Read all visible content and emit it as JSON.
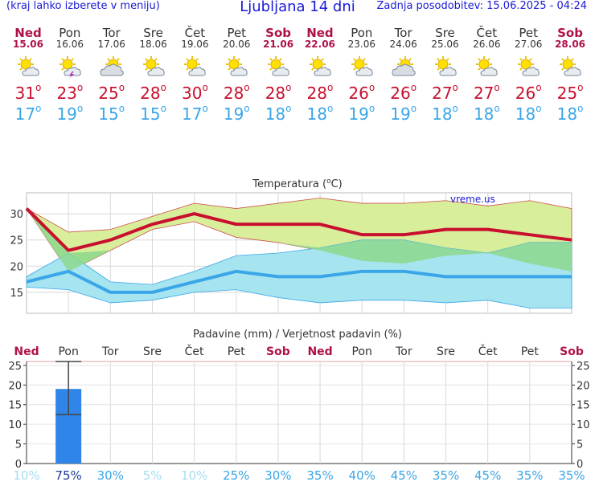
{
  "header": {
    "menu_hint": "(kraj lahko izberete v meniju)",
    "title": "Ljubljana 14 dni",
    "updated": "Zadnja posodobitev: 15.06.2025 - 04:24"
  },
  "days": [
    {
      "name": "Ned",
      "date": "15.06",
      "weekend": true,
      "icon": "partly-cloudy-sun-icon",
      "tmax": "31",
      "tmin": "17"
    },
    {
      "name": "Pon",
      "date": "16.06",
      "weekend": false,
      "icon": "thunderstorm-sun-icon",
      "tmax": "23",
      "tmin": "19"
    },
    {
      "name": "Tor",
      "date": "17.06",
      "weekend": false,
      "icon": "cloudy-sun-icon",
      "tmax": "25",
      "tmin": "15"
    },
    {
      "name": "Sre",
      "date": "18.06",
      "weekend": false,
      "icon": "partly-cloudy-sun-icon",
      "tmax": "28",
      "tmin": "15"
    },
    {
      "name": "Čet",
      "date": "19.06",
      "weekend": false,
      "icon": "partly-cloudy-sun-icon",
      "tmax": "30",
      "tmin": "17"
    },
    {
      "name": "Pet",
      "date": "20.06",
      "weekend": false,
      "icon": "partly-cloudy-sun-icon",
      "tmax": "28",
      "tmin": "19"
    },
    {
      "name": "Sob",
      "date": "21.06",
      "weekend": true,
      "icon": "partly-cloudy-sun-icon",
      "tmax": "28",
      "tmin": "18"
    },
    {
      "name": "Ned",
      "date": "22.06",
      "weekend": true,
      "icon": "partly-cloudy-sun-icon",
      "tmax": "28",
      "tmin": "18"
    },
    {
      "name": "Pon",
      "date": "23.06",
      "weekend": false,
      "icon": "partly-cloudy-sun-icon",
      "tmax": "26",
      "tmin": "19"
    },
    {
      "name": "Tor",
      "date": "24.06",
      "weekend": false,
      "icon": "cloudy-sun-icon",
      "tmax": "26",
      "tmin": "19"
    },
    {
      "name": "Sre",
      "date": "25.06",
      "weekend": false,
      "icon": "partly-cloudy-sun-icon",
      "tmax": "27",
      "tmin": "18"
    },
    {
      "name": "Čet",
      "date": "26.06",
      "weekend": false,
      "icon": "partly-cloudy-sun-icon",
      "tmax": "27",
      "tmin": "18"
    },
    {
      "name": "Pet",
      "date": "27.06",
      "weekend": false,
      "icon": "partly-cloudy-sun-icon",
      "tmax": "26",
      "tmin": "18"
    },
    {
      "name": "Sob",
      "date": "28.06",
      "weekend": true,
      "icon": "partly-cloudy-sun-icon",
      "tmax": "25",
      "tmin": "18"
    }
  ],
  "degree_symbol": "o",
  "colors": {
    "tmax": "#c8102e",
    "tmin": "#3aa6e8",
    "weekend": "#b0104a",
    "tmax_band": "#d8ee9a",
    "tmin_band": "#a6e4f0",
    "overlap": "#8cd88c",
    "precip_bar": "#2f86e8"
  },
  "chart_data": [
    {
      "type": "line",
      "title_prefix": "Temperatura (",
      "title_unit": "°C",
      "title_suffix": ")",
      "watermark": "vreme.us",
      "categories": [
        "Ned",
        "Pon",
        "Tor",
        "Sre",
        "Čet",
        "Pet",
        "Sob",
        "Ned",
        "Pon",
        "Tor",
        "Sre",
        "Čet",
        "Pet",
        "Sob"
      ],
      "ylim": [
        11,
        34
      ],
      "yticks": [
        15,
        20,
        25,
        30
      ],
      "grid": true,
      "series": [
        {
          "role": "max",
          "values": [
            31,
            23,
            25,
            28,
            30,
            28,
            28,
            28,
            26,
            26,
            27,
            27,
            26,
            25
          ],
          "upper": [
            31,
            26.5,
            27,
            29.5,
            32,
            31,
            32,
            33,
            32,
            32,
            32.5,
            31.5,
            32.5,
            31
          ],
          "lower": [
            31,
            19,
            23,
            27,
            28.5,
            25.5,
            24.5,
            23,
            21,
            20.5,
            22,
            22.5,
            20.5,
            19
          ]
        },
        {
          "role": "min",
          "values": [
            17,
            19,
            15,
            15,
            17,
            19,
            18,
            18,
            19,
            19,
            18,
            18,
            18,
            18
          ],
          "upper": [
            18,
            22.5,
            17,
            16.5,
            19,
            22,
            22.5,
            23.5,
            25,
            25,
            23.5,
            22.5,
            24.5,
            24.5
          ],
          "lower": [
            16,
            15.5,
            13,
            13.5,
            15,
            15.5,
            14,
            13,
            13.5,
            13.5,
            13,
            13.5,
            12,
            12
          ]
        }
      ]
    },
    {
      "type": "bar",
      "title": "Padavine (mm) / Verjetnost padavin (%)",
      "categories": [
        "Ned",
        "Pon",
        "Tor",
        "Sre",
        "Čet",
        "Pet",
        "Sob",
        "Ned",
        "Pon",
        "Tor",
        "Sre",
        "Čet",
        "Pet",
        "Sob"
      ],
      "weekend": [
        true,
        false,
        false,
        false,
        false,
        false,
        true,
        true,
        false,
        false,
        false,
        false,
        false,
        true
      ],
      "ylim": [
        0,
        26
      ],
      "yticks": [
        0,
        5,
        10,
        15,
        20,
        25
      ],
      "values": [
        0,
        19,
        0,
        0,
        0,
        0,
        0,
        0,
        0,
        0,
        0,
        0,
        0,
        0
      ],
      "error_low": [
        null,
        12.5,
        null,
        null,
        null,
        null,
        null,
        null,
        null,
        null,
        null,
        null,
        null,
        null
      ],
      "error_high": [
        null,
        26,
        null,
        null,
        null,
        null,
        null,
        null,
        null,
        null,
        null,
        null,
        null,
        null
      ],
      "probability": [
        "10%",
        "75%",
        "30%",
        "5%",
        "10%",
        "25%",
        "30%",
        "35%",
        "40%",
        "45%",
        "35%",
        "45%",
        "35%",
        "35%"
      ],
      "probability_colors": [
        "#a6dcf2",
        "#1a3a9a",
        "#3aa6e8",
        "#a6dcf2",
        "#a6dcf2",
        "#3aa6e8",
        "#3aa6e8",
        "#3aa6e8",
        "#3aa6e8",
        "#3aa6e8",
        "#3aa6e8",
        "#3aa6e8",
        "#3aa6e8",
        "#3aa6e8"
      ]
    }
  ]
}
